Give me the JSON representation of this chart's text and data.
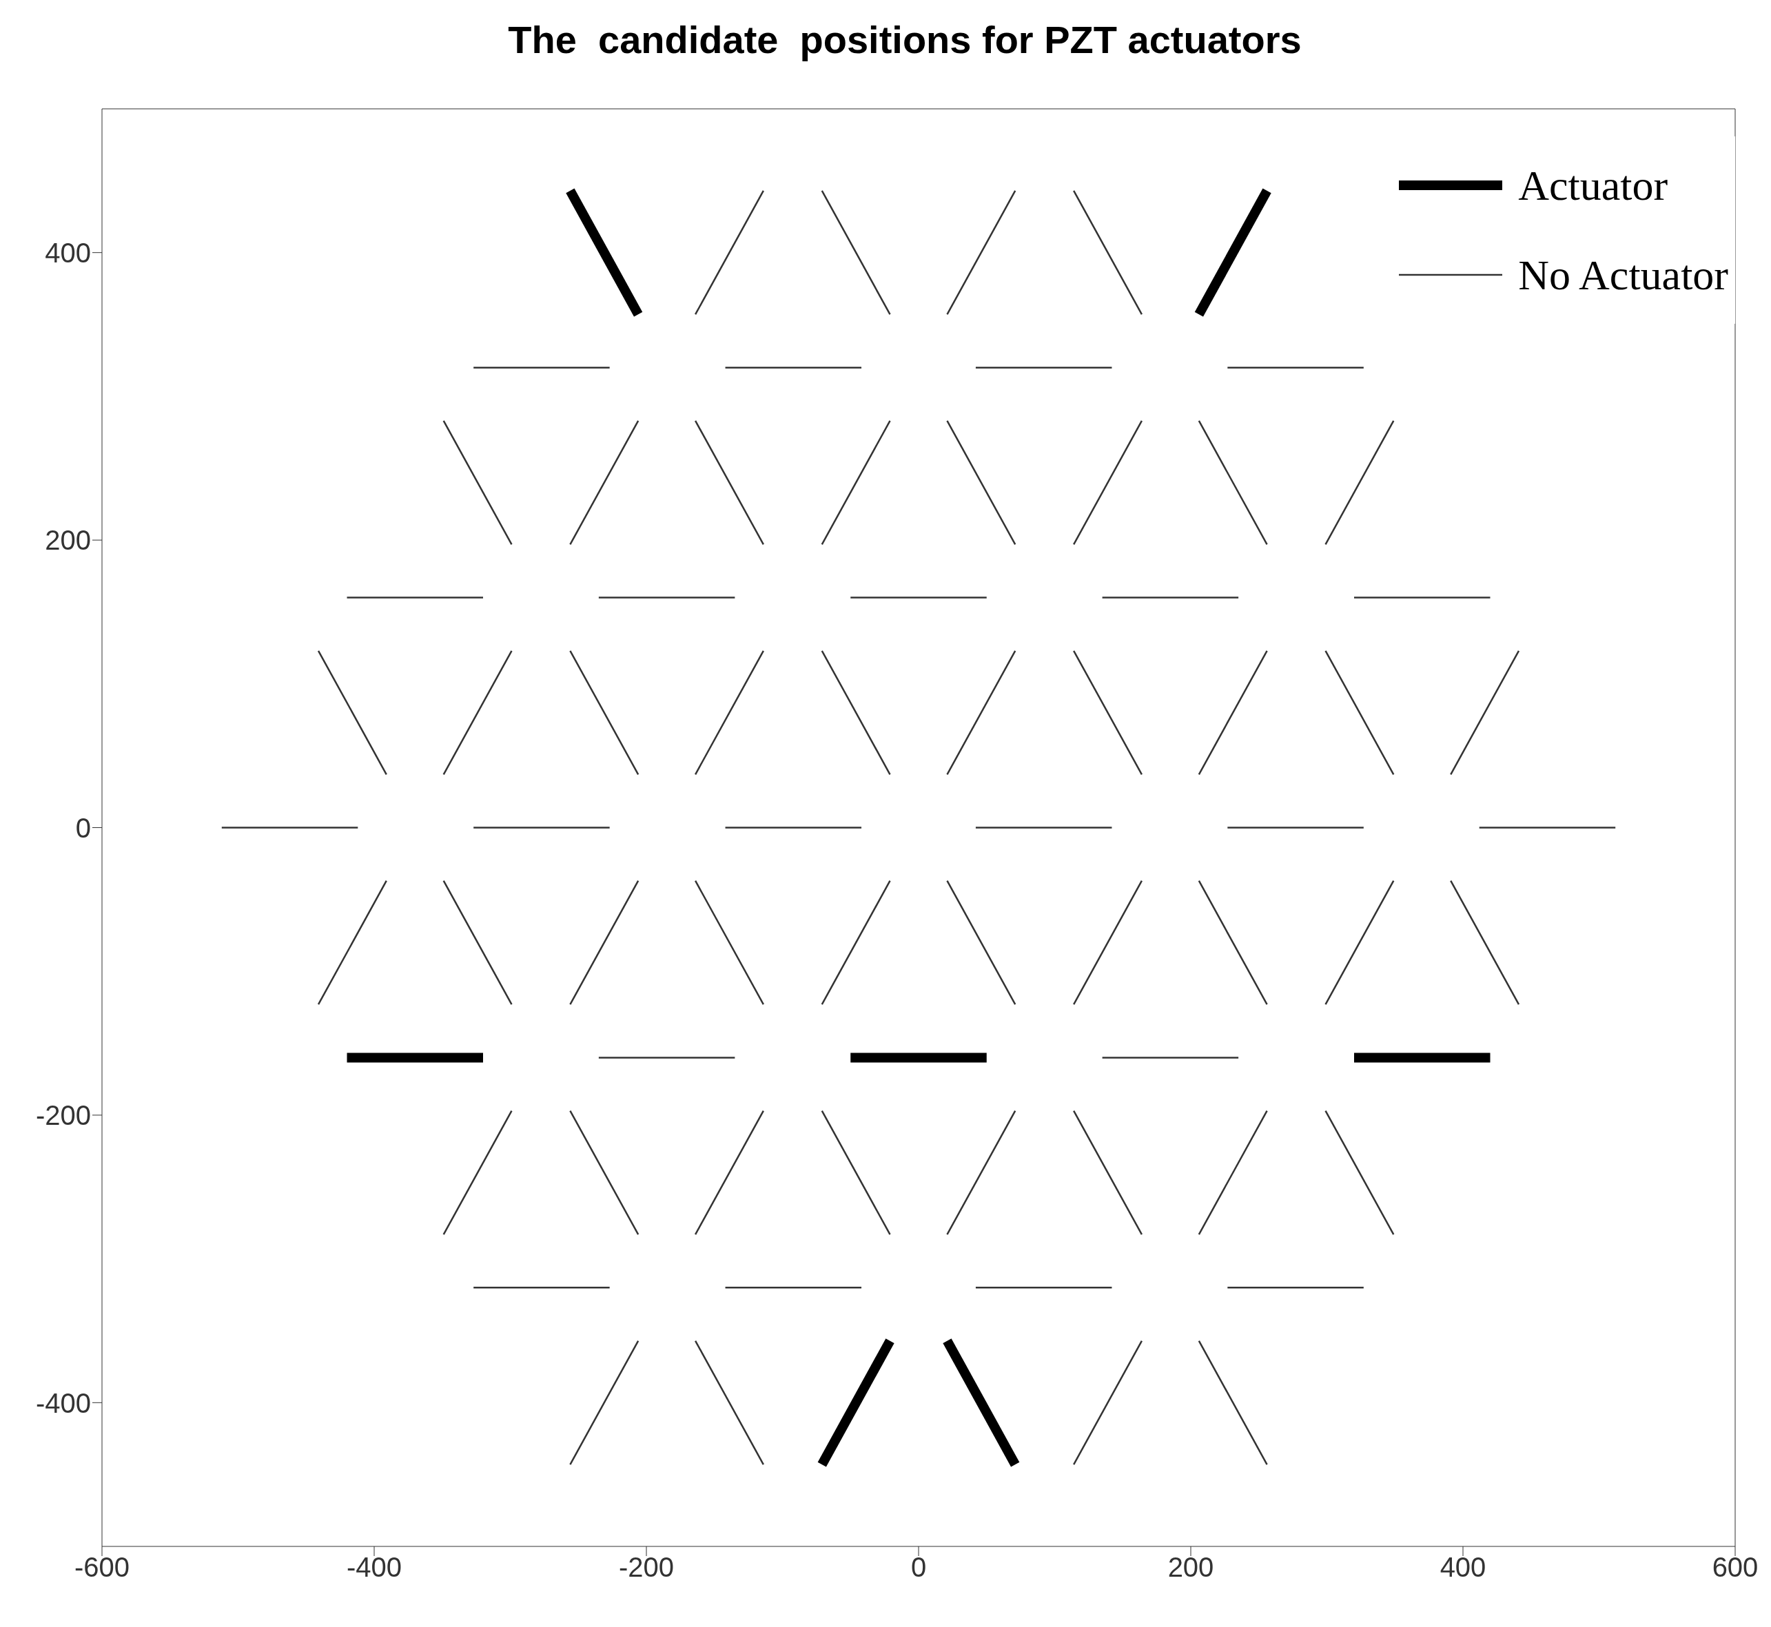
{
  "chart_data": {
    "type": "line",
    "title": "The  candidate  positions for PZT actuators",
    "xlim": [
      -600,
      600
    ],
    "xticks": [
      -600,
      -400,
      -200,
      0,
      200,
      400,
      600
    ],
    "ylim": [
      -500,
      500
    ],
    "yticks": [
      -400,
      -200,
      0,
      200,
      400
    ],
    "legend": "top right",
    "series": [
      {
        "name": "Actuator",
        "color": "#000000",
        "x": [
          -256,
          -206
        ],
        "values": [
          443,
          357
        ]
      },
      {
        "color": "#000000",
        "x": [
          206,
          256
        ],
        "values": [
          357,
          443
        ]
      },
      {
        "color": "#000000",
        "x": [
          -420,
          -320
        ],
        "values": [
          -160,
          -160
        ]
      },
      {
        "color": "#000000",
        "x": [
          -50,
          50
        ],
        "values": [
          -160,
          -160
        ]
      },
      {
        "color": "#000000",
        "x": [
          320,
          420
        ],
        "values": [
          -160,
          -160
        ]
      },
      {
        "color": "#000000",
        "x": [
          -71,
          -21
        ],
        "values": [
          -443,
          -357
        ]
      },
      {
        "color": "#000000",
        "x": [
          21,
          71
        ],
        "values": [
          -357,
          -443
        ]
      },
      {
        "name": "No Actuator",
        "color": "#333333",
        "x": [
          -327,
          -227
        ],
        "values": [
          320,
          320
        ]
      },
      {
        "color": "#333333",
        "x": [
          -142,
          -42
        ],
        "values": [
          320,
          320
        ]
      },
      {
        "color": "#333333",
        "x": [
          42,
          142
        ],
        "values": [
          320,
          320
        ]
      },
      {
        "color": "#333333",
        "x": [
          227,
          327
        ],
        "values": [
          320,
          320
        ]
      },
      {
        "color": "#333333",
        "x": [
          -420,
          -320
        ],
        "values": [
          160,
          160
        ]
      },
      {
        "color": "#333333",
        "x": [
          -235,
          -135
        ],
        "values": [
          160,
          160
        ]
      },
      {
        "color": "#333333",
        "x": [
          -50,
          50
        ],
        "values": [
          160,
          160
        ]
      },
      {
        "color": "#333333",
        "x": [
          135,
          235
        ],
        "values": [
          160,
          160
        ]
      },
      {
        "color": "#333333",
        "x": [
          320,
          420
        ],
        "values": [
          160,
          160
        ]
      },
      {
        "color": "#333333",
        "x": [
          -512,
          -412
        ],
        "values": [
          0,
          0
        ]
      },
      {
        "color": "#333333",
        "x": [
          -327,
          -227
        ],
        "values": [
          0,
          0
        ]
      },
      {
        "color": "#333333",
        "x": [
          -142,
          -42
        ],
        "values": [
          0,
          0
        ]
      },
      {
        "color": "#333333",
        "x": [
          42,
          142
        ],
        "values": [
          0,
          0
        ]
      },
      {
        "color": "#333333",
        "x": [
          227,
          327
        ],
        "values": [
          0,
          0
        ]
      },
      {
        "color": "#333333",
        "x": [
          412,
          512
        ],
        "values": [
          0,
          0
        ]
      },
      {
        "color": "#333333",
        "x": [
          -235,
          -135
        ],
        "values": [
          -160,
          -160
        ]
      },
      {
        "color": "#333333",
        "x": [
          135,
          235
        ],
        "values": [
          -160,
          -160
        ]
      },
      {
        "color": "#333333",
        "x": [
          -327,
          -227
        ],
        "values": [
          -320,
          -320
        ]
      },
      {
        "color": "#333333",
        "x": [
          -142,
          -42
        ],
        "values": [
          -320,
          -320
        ]
      },
      {
        "color": "#333333",
        "x": [
          42,
          142
        ],
        "values": [
          -320,
          -320
        ]
      },
      {
        "color": "#333333",
        "x": [
          227,
          327
        ],
        "values": [
          -320,
          -320
        ]
      },
      {
        "color": "#333333",
        "x": [
          -164,
          -114
        ],
        "values": [
          357,
          443
        ]
      },
      {
        "color": "#333333",
        "x": [
          -71,
          -21
        ],
        "values": [
          443,
          357
        ]
      },
      {
        "color": "#333333",
        "x": [
          21,
          71
        ],
        "values": [
          357,
          443
        ]
      },
      {
        "color": "#333333",
        "x": [
          114,
          164
        ],
        "values": [
          443,
          357
        ]
      },
      {
        "color": "#333333",
        "x": [
          -349,
          -299
        ],
        "values": [
          283,
          197
        ]
      },
      {
        "color": "#333333",
        "x": [
          -256,
          -206
        ],
        "values": [
          197,
          283
        ]
      },
      {
        "color": "#333333",
        "x": [
          -164,
          -114
        ],
        "values": [
          283,
          197
        ]
      },
      {
        "color": "#333333",
        "x": [
          -71,
          -21
        ],
        "values": [
          197,
          283
        ]
      },
      {
        "color": "#333333",
        "x": [
          21,
          71
        ],
        "values": [
          283,
          197
        ]
      },
      {
        "color": "#333333",
        "x": [
          114,
          164
        ],
        "values": [
          197,
          283
        ]
      },
      {
        "color": "#333333",
        "x": [
          206,
          256
        ],
        "values": [
          283,
          197
        ]
      },
      {
        "color": "#333333",
        "x": [
          299,
          349
        ],
        "values": [
          197,
          283
        ]
      },
      {
        "color": "#333333",
        "x": [
          -441,
          -391
        ],
        "values": [
          123,
          37
        ]
      },
      {
        "color": "#333333",
        "x": [
          -349,
          -299
        ],
        "values": [
          37,
          123
        ]
      },
      {
        "color": "#333333",
        "x": [
          -256,
          -206
        ],
        "values": [
          123,
          37
        ]
      },
      {
        "color": "#333333",
        "x": [
          -164,
          -114
        ],
        "values": [
          37,
          123
        ]
      },
      {
        "color": "#333333",
        "x": [
          -71,
          -21
        ],
        "values": [
          123,
          37
        ]
      },
      {
        "color": "#333333",
        "x": [
          21,
          71
        ],
        "values": [
          37,
          123
        ]
      },
      {
        "color": "#333333",
        "x": [
          114,
          164
        ],
        "values": [
          123,
          37
        ]
      },
      {
        "color": "#333333",
        "x": [
          206,
          256
        ],
        "values": [
          37,
          123
        ]
      },
      {
        "color": "#333333",
        "x": [
          299,
          349
        ],
        "values": [
          123,
          37
        ]
      },
      {
        "color": "#333333",
        "x": [
          391,
          441
        ],
        "values": [
          37,
          123
        ]
      },
      {
        "color": "#333333",
        "x": [
          -441,
          -391
        ],
        "values": [
          -123,
          -37
        ]
      },
      {
        "color": "#333333",
        "x": [
          -349,
          -299
        ],
        "values": [
          -37,
          -123
        ]
      },
      {
        "color": "#333333",
        "x": [
          -256,
          -206
        ],
        "values": [
          -123,
          -37
        ]
      },
      {
        "color": "#333333",
        "x": [
          -164,
          -114
        ],
        "values": [
          -37,
          -123
        ]
      },
      {
        "color": "#333333",
        "x": [
          -71,
          -21
        ],
        "values": [
          -123,
          -37
        ]
      },
      {
        "color": "#333333",
        "x": [
          21,
          71
        ],
        "values": [
          -37,
          -123
        ]
      },
      {
        "color": "#333333",
        "x": [
          114,
          164
        ],
        "values": [
          -123,
          -37
        ]
      },
      {
        "color": "#333333",
        "x": [
          206,
          256
        ],
        "values": [
          -37,
          -123
        ]
      },
      {
        "color": "#333333",
        "x": [
          299,
          349
        ],
        "values": [
          -123,
          -37
        ]
      },
      {
        "color": "#333333",
        "x": [
          391,
          441
        ],
        "values": [
          -37,
          -123
        ]
      },
      {
        "color": "#333333",
        "x": [
          -349,
          -299
        ],
        "values": [
          -283,
          -197
        ]
      },
      {
        "color": "#333333",
        "x": [
          -256,
          -206
        ],
        "values": [
          -197,
          -283
        ]
      },
      {
        "color": "#333333",
        "x": [
          -164,
          -114
        ],
        "values": [
          -283,
          -197
        ]
      },
      {
        "color": "#333333",
        "x": [
          -71,
          -21
        ],
        "values": [
          -197,
          -283
        ]
      },
      {
        "color": "#333333",
        "x": [
          21,
          71
        ],
        "values": [
          -283,
          -197
        ]
      },
      {
        "color": "#333333",
        "x": [
          114,
          164
        ],
        "values": [
          -197,
          -283
        ]
      },
      {
        "color": "#333333",
        "x": [
          206,
          256
        ],
        "values": [
          -283,
          -197
        ]
      },
      {
        "color": "#333333",
        "x": [
          299,
          349
        ],
        "values": [
          -197,
          -283
        ]
      },
      {
        "color": "#333333",
        "x": [
          -256,
          -206
        ],
        "values": [
          -443,
          -357
        ]
      },
      {
        "color": "#333333",
        "x": [
          -164,
          -114
        ],
        "values": [
          -357,
          -443
        ]
      },
      {
        "color": "#333333",
        "x": [
          114,
          164
        ],
        "values": [
          -443,
          -357
        ]
      },
      {
        "color": "#333333",
        "x": [
          206,
          256
        ],
        "values": [
          -357,
          -443
        ]
      }
    ]
  }
}
